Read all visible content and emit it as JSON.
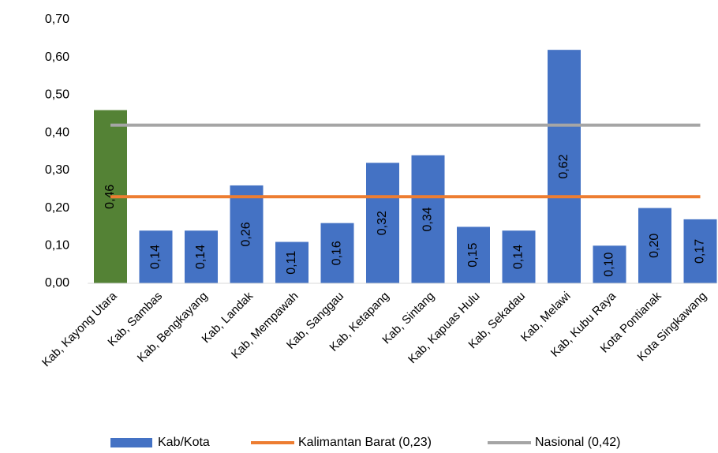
{
  "chart_data": {
    "type": "bar",
    "categories": [
      "Kab, Kayong Utara",
      "Kab, Sambas",
      "Kab, Bengkayang",
      "Kab, Landak",
      "Kab, Mempawah",
      "Kab, Sanggau",
      "Kab, Ketapang",
      "Kab, Sintang",
      "Kab, Kapuas Hulu",
      "Kab, Sekadau",
      "Kab, Melawi",
      "Kab, Kubu Raya",
      "Kota Pontianak",
      "Kota Singkawang"
    ],
    "series": [
      {
        "name": "Kab/Kota",
        "color": "#4472c4",
        "colors": [
          "#548235",
          "#4472c4",
          "#4472c4",
          "#4472c4",
          "#4472c4",
          "#4472c4",
          "#4472c4",
          "#4472c4",
          "#4472c4",
          "#4472c4",
          "#4472c4",
          "#4472c4",
          "#4472c4",
          "#4472c4"
        ],
        "values": [
          0.46,
          0.14,
          0.14,
          0.26,
          0.11,
          0.16,
          0.32,
          0.34,
          0.15,
          0.14,
          0.62,
          0.1,
          0.2,
          0.17
        ],
        "value_labels": [
          "0,46",
          "0,14",
          "0,14",
          "0,26",
          "0,11",
          "0,16",
          "0,32",
          "0,34",
          "0,15",
          "0,14",
          "0,62",
          "0,10",
          "0,20",
          "0,17"
        ]
      }
    ],
    "reference_lines": [
      {
        "name": "Kalimantan Barat (0,23)",
        "value": 0.23,
        "color": "#ed7d31"
      },
      {
        "name": "Nasional (0,42)",
        "value": 0.42,
        "color": "#a5a5a5"
      }
    ],
    "ylim": [
      0,
      0.7
    ],
    "yticks": [
      {
        "value": 0,
        "label": "0,00"
      },
      {
        "value": 0.1,
        "label": "0,10"
      },
      {
        "value": 0.2,
        "label": "0,20"
      },
      {
        "value": 0.3,
        "label": "0,30"
      },
      {
        "value": 0.4,
        "label": "0,40"
      },
      {
        "value": 0.5,
        "label": "0,50"
      },
      {
        "value": 0.6,
        "label": "0,60"
      },
      {
        "value": 0.7,
        "label": "0,70"
      }
    ],
    "legend": "bottom"
  }
}
